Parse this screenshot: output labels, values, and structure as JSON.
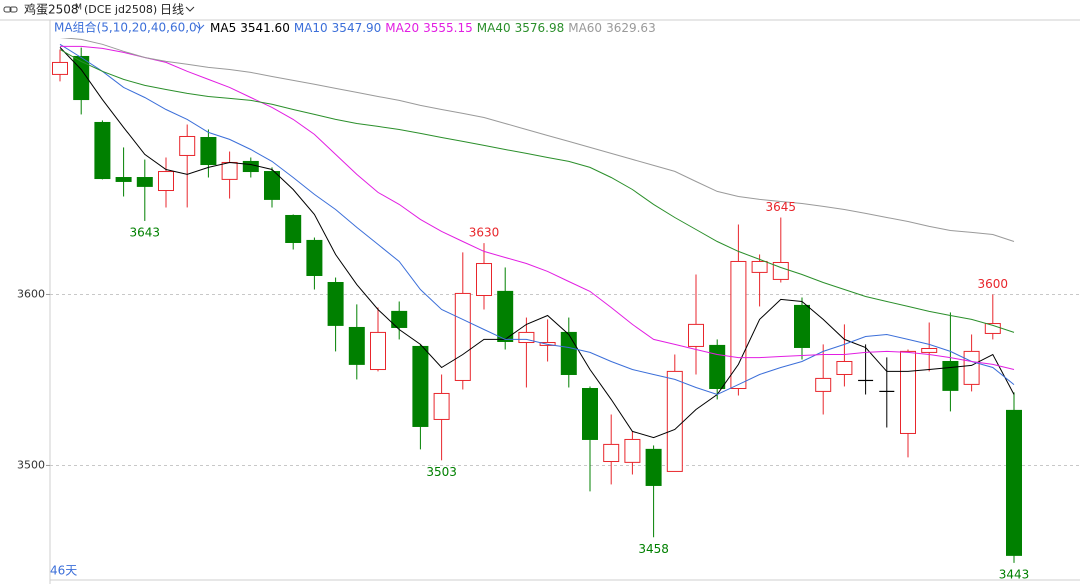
{
  "header": {
    "symbol": "鸡蛋2508",
    "symbol_mark": "M",
    "exchange": "(DCE jd2508)",
    "period": "日线",
    "ma_group": "MA组合(5,10,20,40,60,0)"
  },
  "footer": {
    "days": "46天"
  },
  "chart_data": {
    "type": "candlestick",
    "up_color": "#e8262c",
    "down_color": "#008000",
    "doji_color": "#000000",
    "ylim": [
      3433,
      3750
    ],
    "yticks": [
      3500,
      3600
    ],
    "grid": true,
    "candles": {
      "open": [
        3728.7,
        3739.2,
        3700.6,
        3668.4,
        3668.4,
        3660.8,
        3681.3,
        3691.8,
        3667.3,
        3677.8,
        3671.9,
        3646.2,
        3631.6,
        3607.0,
        3580.7,
        3556.1,
        3590.1,
        3569.6,
        3526.9,
        3549.7,
        3599.4,
        3601.8,
        3571.9,
        3570.2,
        3577.8,
        3545.0,
        3502.3,
        3501.8,
        3509.4,
        3496.5,
        3569.6,
        3570.2,
        3545.0,
        3612.9,
        3608.8,
        3593.6,
        3543.3,
        3553.2,
        3549.7,
        3543.3,
        3518.7,
        3566.1,
        3560.8,
        3547.4,
        3577.2,
        3532.2
      ],
      "high": [
        3743.3,
        3744.4,
        3701.8,
        3686.0,
        3678.9,
        3680.1,
        3699.4,
        3696.5,
        3683.6,
        3680.1,
        3674.3,
        3646.8,
        3633.3,
        3609.9,
        3594.2,
        3592.4,
        3595.9,
        3570.8,
        3553.2,
        3624.6,
        3630,
        3615.8,
        3586.5,
        3585.4,
        3586.5,
        3546.2,
        3529.8,
        3519.9,
        3511.7,
        3564.9,
        3611.7,
        3573.7,
        3640.9,
        3623.4,
        3645,
        3598.2,
        3570.8,
        3582.5,
        3570.8,
        3563.2,
        3567.8,
        3583.6,
        3589.5,
        3576.6,
        3600,
        3542.7
      ],
      "low": [
        3724.6,
        3705.3,
        3667.3,
        3657.3,
        3643,
        3650.9,
        3650.9,
        3668.4,
        3656.1,
        3668.4,
        3650.9,
        3626.3,
        3602.9,
        3566.7,
        3550.3,
        3555.0,
        3573.7,
        3509.4,
        3503,
        3544.4,
        3591.2,
        3567.8,
        3545.6,
        3560.8,
        3545.6,
        3484.8,
        3488.9,
        3494.7,
        3458,
        3496.5,
        3553.2,
        3538.6,
        3540.9,
        3593.0,
        3607.0,
        3562.0,
        3529.8,
        3546.2,
        3541.5,
        3522.2,
        3504.7,
        3555.0,
        3531.6,
        3543.3,
        3573.7,
        3443
      ],
      "close": [
        3735.7,
        3714.0,
        3667.8,
        3666.1,
        3663.2,
        3671.9,
        3692.4,
        3676.0,
        3677.2,
        3671.9,
        3655.6,
        3630.4,
        3611.1,
        3581.9,
        3559.1,
        3577.8,
        3580.7,
        3522.8,
        3542.1,
        3600.6,
        3618.1,
        3572.5,
        3577.8,
        3571.9,
        3553.2,
        3515.2,
        3512.3,
        3515.2,
        3488.3,
        3555.0,
        3582.5,
        3545.0,
        3619.3,
        3619.3,
        3618.7,
        3569.0,
        3550.9,
        3560.8,
        3549.7,
        3543.3,
        3566.7,
        3568.4,
        3543.9,
        3566.7,
        3583.0,
        3447.4
      ]
    },
    "series": [
      {
        "name": "MA5",
        "color": "#000000",
        "legend_value": {
          "value": 3541.6,
          "label": "3541.60"
        },
        "values": [
          3744.5,
          3731.6,
          3714.0,
          3697.7,
          3681.9,
          3673.1,
          3670.2,
          3674.3,
          3677.2,
          3676.0,
          3673.1,
          3661.4,
          3646.8,
          3623.4,
          3605.8,
          3591.2,
          3579.5,
          3570.8,
          3557.3,
          3564.9,
          3573.7,
          3573.7,
          3582.5,
          3587.7,
          3576.6,
          3556.1,
          3538.6,
          3519.9,
          3516.3,
          3521.0,
          3532.7,
          3541.5,
          3559.1,
          3585.4,
          3597.1,
          3595.9,
          3585.4,
          3573.7,
          3569.0,
          3555.0,
          3555.0,
          3556.1,
          3557.3,
          3558.5,
          3564.9,
          3541.5
        ]
      },
      {
        "name": "MA10",
        "color": "#3c6fd9",
        "legend_value": {
          "value": 3547.9,
          "label": "3547.90"
        },
        "values": [
          3746.3,
          3738.6,
          3730.5,
          3721.1,
          3715.2,
          3708.2,
          3702.4,
          3694.8,
          3690.7,
          3684.8,
          3677.8,
          3668.4,
          3658.5,
          3649.7,
          3639.2,
          3629.3,
          3619.3,
          3602.9,
          3591.2,
          3585.4,
          3579.5,
          3573.7,
          3573.7,
          3570.8,
          3569.0,
          3566.1,
          3560.8,
          3556.1,
          3553.2,
          3550.3,
          3545.6,
          3541.5,
          3547.3,
          3553.2,
          3557.3,
          3560.8,
          3566.7,
          3570.8,
          3575.4,
          3576.6,
          3573.7,
          3570.8,
          3566.7,
          3560.8,
          3557.3,
          3547.3
        ]
      },
      {
        "name": "MA20",
        "color": "#e21ee2",
        "legend_value": {
          "value": 3555.15,
          "label": "3555.15"
        },
        "values": [
          3745.1,
          3745.1,
          3743.9,
          3741.6,
          3738.6,
          3735.7,
          3730.5,
          3725.8,
          3721.1,
          3715.2,
          3709.4,
          3702.4,
          3693.6,
          3681.9,
          3670.2,
          3659.7,
          3652.7,
          3643.9,
          3636.9,
          3631.0,
          3625.2,
          3621.6,
          3618.1,
          3613.5,
          3607.6,
          3601.8,
          3592.4,
          3582.5,
          3573.7,
          3570.8,
          3567.8,
          3564.9,
          3563.1,
          3563.1,
          3563.7,
          3564.3,
          3564.9,
          3564.9,
          3566.1,
          3566.7,
          3566.1,
          3564.9,
          3563.1,
          3560.8,
          3559.1,
          3556.1
        ]
      },
      {
        "name": "MA40",
        "color": "#2b8f2b",
        "legend_value": {
          "value": 3576.98,
          "label": "3576.98"
        },
        "values": [
          3743.3,
          3736.3,
          3730.5,
          3725.8,
          3722.3,
          3719.9,
          3717.6,
          3715.8,
          3714.7,
          3713.5,
          3711.2,
          3708.2,
          3705.3,
          3702.4,
          3700.0,
          3698.3,
          3696.5,
          3694.2,
          3691.8,
          3689.5,
          3687.2,
          3684.8,
          3682.5,
          3680.1,
          3677.8,
          3674.3,
          3668.4,
          3661.4,
          3652.7,
          3645.0,
          3638.0,
          3631.0,
          3625.2,
          3620.5,
          3615.8,
          3611.7,
          3607.0,
          3602.9,
          3598.8,
          3595.9,
          3593.0,
          3590.1,
          3587.7,
          3585.4,
          3581.9,
          3577.8
        ]
      },
      {
        "name": "MA60",
        "color": "#9a9a9a",
        "legend_value": {
          "value": 3629.63,
          "label": "3629.63"
        },
        "values": [
          3750.3,
          3749.2,
          3746.3,
          3742.2,
          3738.6,
          3736.3,
          3734.6,
          3732.8,
          3731.6,
          3729.9,
          3727.5,
          3725.2,
          3722.9,
          3720.5,
          3718.2,
          3715.8,
          3713.5,
          3710.6,
          3708.2,
          3705.9,
          3703.5,
          3700.0,
          3696.5,
          3693.0,
          3689.5,
          3686.0,
          3682.5,
          3679.0,
          3675.5,
          3672.0,
          3666.1,
          3660.3,
          3657.3,
          3655.6,
          3654.4,
          3653.2,
          3651.5,
          3649.7,
          3647.4,
          3645.0,
          3642.7,
          3639.8,
          3637.4,
          3636.3,
          3635.1,
          3631.0
        ]
      }
    ],
    "annotations": [
      {
        "index": 4,
        "value": 3643,
        "side": "low"
      },
      {
        "index": 18,
        "value": 3503,
        "side": "low"
      },
      {
        "index": 20,
        "value": 3630,
        "side": "high"
      },
      {
        "index": 28,
        "value": 3458,
        "side": "low"
      },
      {
        "index": 34,
        "value": 3645,
        "side": "high"
      },
      {
        "index": 44,
        "value": 3600,
        "side": "high"
      },
      {
        "index": 45,
        "value": 3443,
        "side": "low"
      }
    ]
  }
}
